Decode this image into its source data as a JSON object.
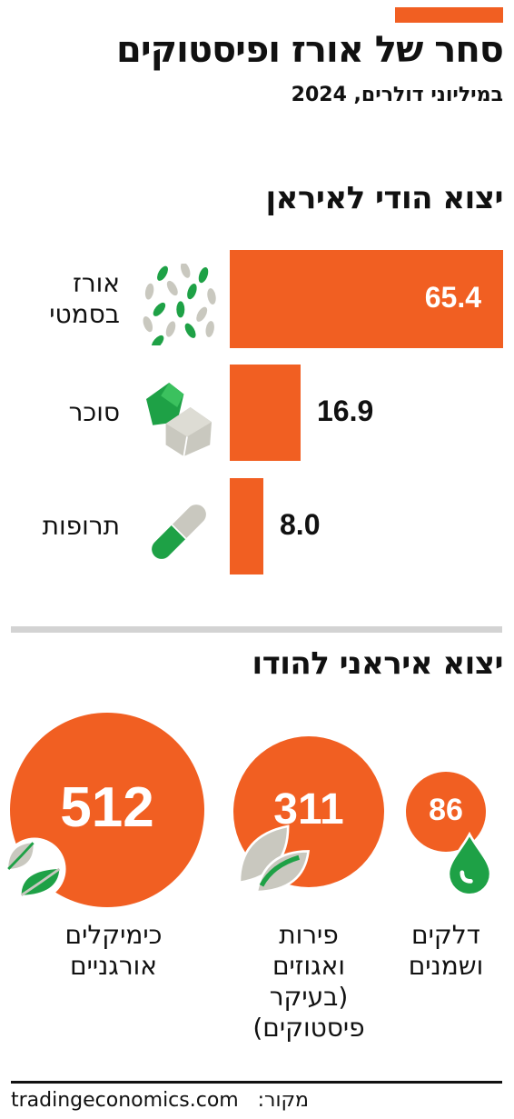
{
  "header": {
    "title": "סחר של אורז ופיסטוקים",
    "subtitle": "במיליוני דולרים, 2024"
  },
  "colors": {
    "accent": "#f15f22",
    "green": "#1ea146",
    "gray": "#c9c8bf"
  },
  "chart_data": [
    {
      "type": "bar",
      "orientation": "horizontal",
      "title": "יצוא הודי לאיראן",
      "categories": [
        "אורז\nבסמטי",
        "סוכר",
        "תרופות"
      ],
      "values": [
        65.4,
        16.9,
        8.0
      ],
      "value_labels": [
        "65.4",
        "16.9",
        "8.0"
      ],
      "icons": [
        "rice-grains-icon",
        "sugar-cubes-icon",
        "pill-capsule-icon"
      ],
      "xlim": [
        0,
        65.4
      ]
    },
    {
      "type": "bubble",
      "title": "יצוא איראני להודו",
      "categories": [
        "כימיקלים\nאורגניים",
        "פירות\nואגוזים\n(בעיקר\nפיסטוקים)",
        "דלקים\nושמנים"
      ],
      "values": [
        512,
        311,
        86
      ],
      "value_labels": [
        "512",
        "311",
        "86"
      ],
      "icons": [
        "leaves-icon",
        "pistachio-icon",
        "oil-drop-icon"
      ]
    }
  ],
  "footer": {
    "source_label": "מקור:",
    "source_name": "tradingeconomics.com"
  }
}
